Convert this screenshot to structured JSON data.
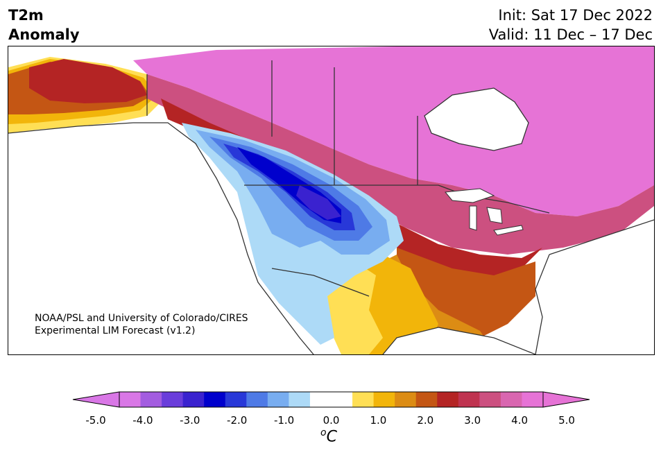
{
  "header": {
    "title_line1": "T2m",
    "title_line2": "Anomaly",
    "init_text": "Init: Sat 17 Dec 2022",
    "valid_text": "Valid: 11 Dec – 17 Dec"
  },
  "credit": {
    "line1": "NOAA/PSL and University of Colorado/CIRES",
    "line2": "Experimental LIM Forecast (v1.2)"
  },
  "colorbar": {
    "unit_prefix": "o",
    "unit_suffix": "C",
    "ticks": [
      "-5.0",
      "-4.0",
      "-3.0",
      "-2.0",
      "-1.0",
      "0.0",
      "1.0",
      "2.0",
      "3.0",
      "4.0",
      "5.0"
    ],
    "colors": {
      "under": "#d977e6",
      "bins": [
        "#d977e6",
        "#a35ce0",
        "#6a3ddb",
        "#3a22cf",
        "#0000cc",
        "#2838d8",
        "#4e7ae6",
        "#78adf0",
        "#addaf7",
        "#ffffff",
        "#ffffff",
        "#ffdf55",
        "#f2b50a",
        "#dc8c14",
        "#c45614",
        "#b42424",
        "#bf3350",
        "#cc5080",
        "#d966b0",
        "#e673d6"
      ],
      "over": "#e673d6"
    }
  },
  "map": {
    "ocean_color": "#ffffff",
    "border_color": "#333333"
  }
}
